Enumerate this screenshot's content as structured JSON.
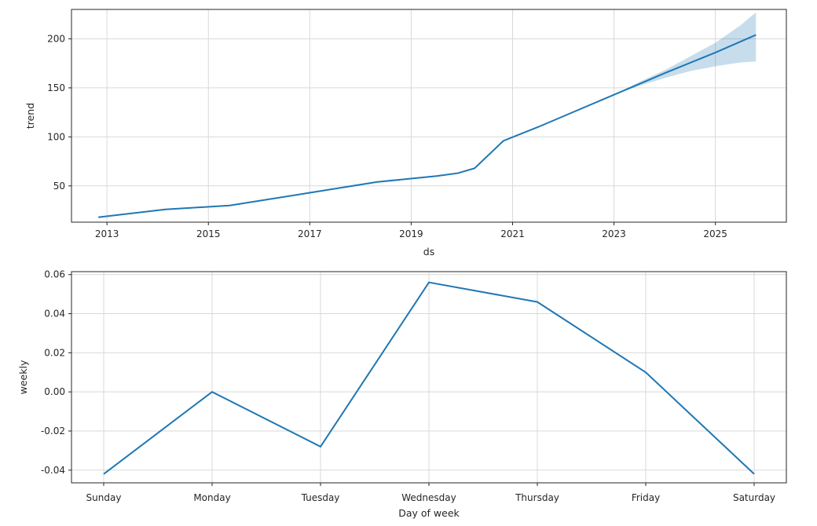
{
  "chart_data": [
    {
      "type": "line",
      "xlabel": "ds",
      "ylabel": "trend",
      "x_ticks": [
        "2013",
        "2015",
        "2017",
        "2019",
        "2021",
        "2023",
        "2025"
      ],
      "y_ticks": [
        50,
        100,
        150,
        200
      ],
      "xlim": [
        2012.3,
        2026.4
      ],
      "ylim": [
        13,
        230
      ],
      "grid": true,
      "color": "#1f77b4",
      "band_color": "#1f77b4",
      "series": [
        {
          "x": [
            2012.83,
            2014.15,
            2015.42,
            2017.0,
            2018.33,
            2019.5,
            2019.92,
            2020.25,
            2020.82,
            2021.5,
            2023.0,
            2024.0,
            2025.0,
            2025.8
          ],
          "y": [
            18,
            26,
            30,
            43,
            54,
            60,
            63,
            68,
            96,
            110,
            143,
            165,
            186,
            204
          ]
        }
      ],
      "uncertainty": {
        "x": [
          2023.0,
          2023.5,
          2024.0,
          2024.5,
          2025.0,
          2025.5,
          2025.8
        ],
        "upper": [
          143,
          156,
          168,
          182,
          196,
          214,
          227
        ],
        "lower": [
          143,
          152,
          160,
          167,
          172,
          176,
          177
        ]
      }
    },
    {
      "type": "line",
      "xlabel": "Day of week",
      "ylabel": "weekly",
      "categories": [
        "Sunday",
        "Monday",
        "Tuesday",
        "Wednesday",
        "Thursday",
        "Friday",
        "Saturday"
      ],
      "y_ticks": [
        "-0.04",
        "-0.02",
        "0.00",
        "0.02",
        "0.04",
        "0.06"
      ],
      "ylim": [
        -0.0465,
        0.0615
      ],
      "grid": true,
      "color": "#1f77b4",
      "series": [
        {
          "values": [
            -0.042,
            0.0,
            -0.028,
            0.056,
            0.046,
            0.01,
            -0.042
          ]
        }
      ]
    }
  ]
}
